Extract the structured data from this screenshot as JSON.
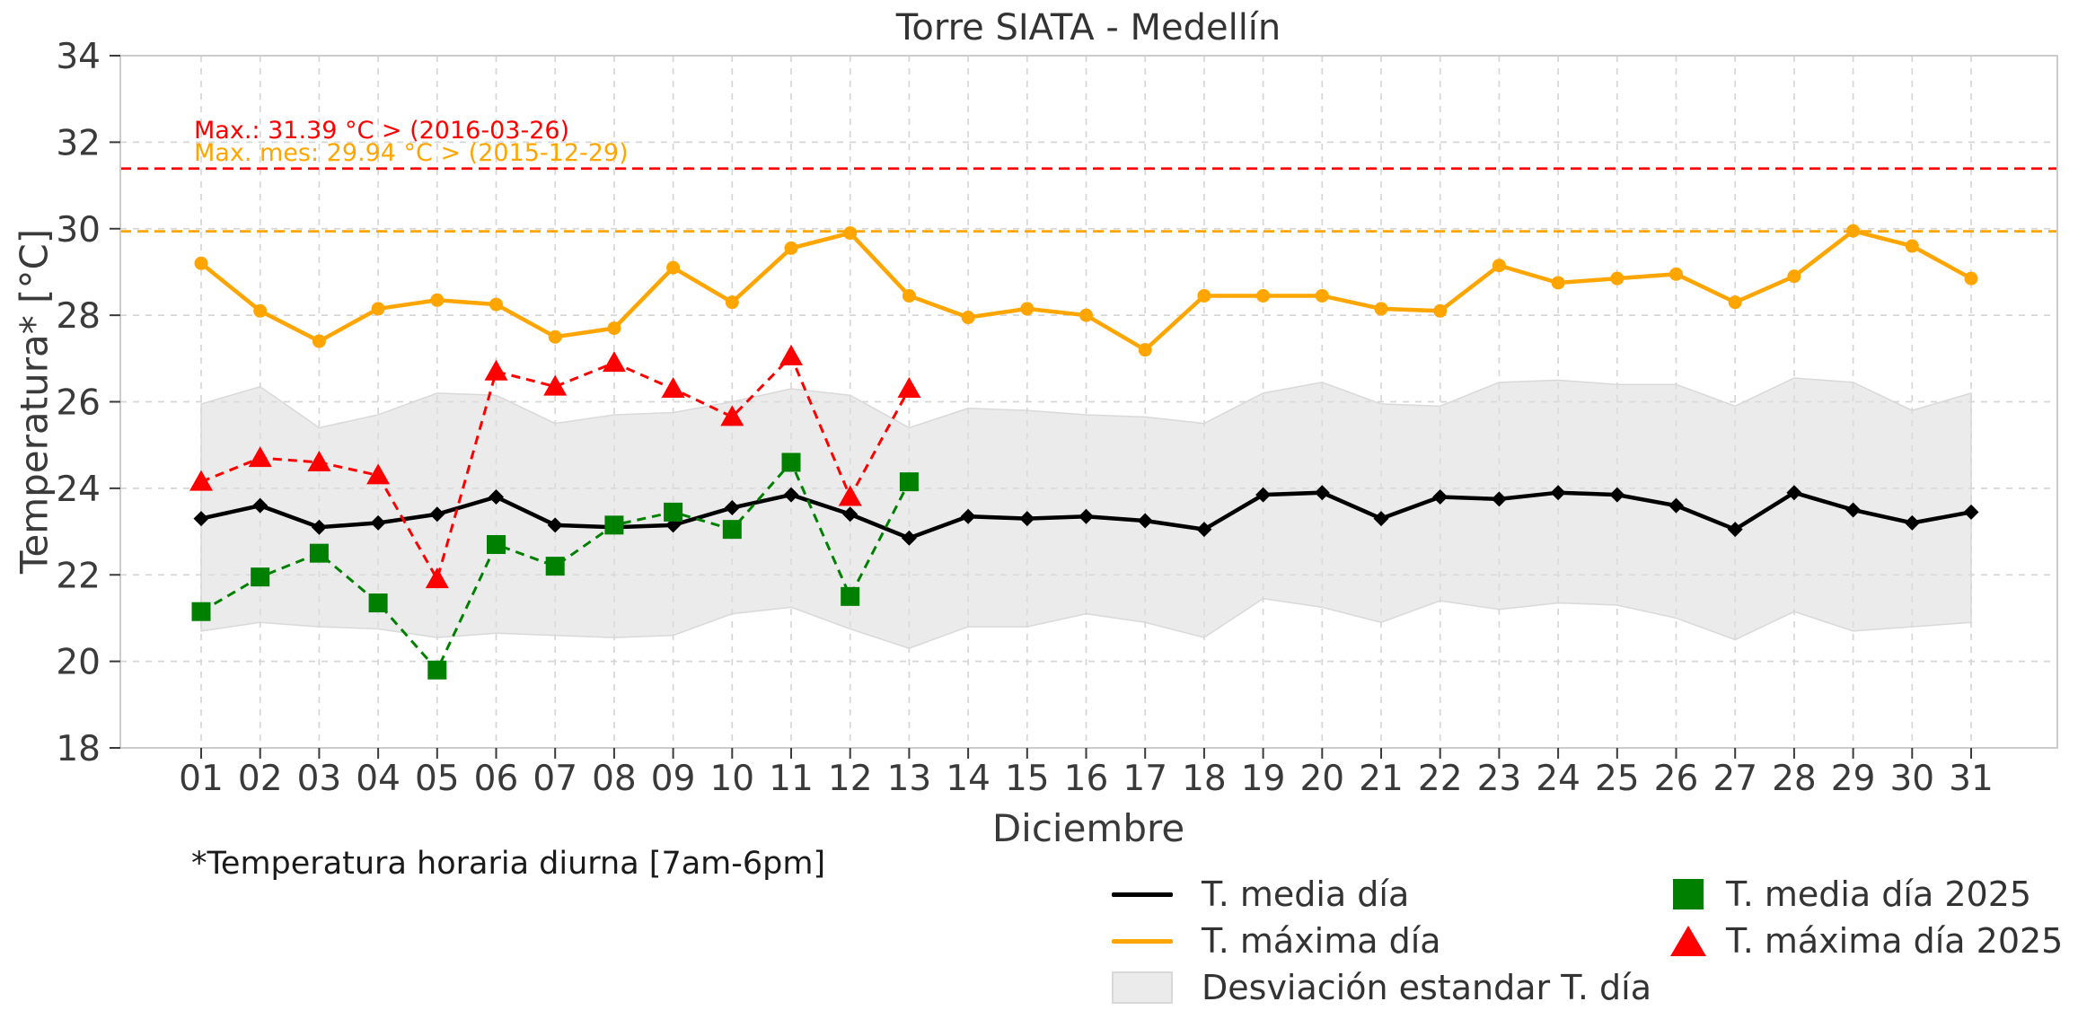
{
  "title": "Torre SIATA - Medellín",
  "axes": {
    "y_label": "Temperatura* [°C]",
    "x_label": "Diciembre",
    "y_ticks": [
      18,
      20,
      22,
      24,
      26,
      28,
      30,
      32,
      34
    ],
    "x_ticks": [
      "01",
      "02",
      "03",
      "04",
      "05",
      "06",
      "07",
      "08",
      "09",
      "10",
      "11",
      "12",
      "13",
      "14",
      "15",
      "16",
      "17",
      "18",
      "19",
      "20",
      "21",
      "22",
      "23",
      "24",
      "25",
      "26",
      "27",
      "28",
      "29",
      "30",
      "31"
    ]
  },
  "footnote": "*Temperatura horaria diurna [7am-6pm]",
  "legend": {
    "column1": [
      {
        "label": "T. media día",
        "swatch": "black-line"
      },
      {
        "label": "T. máxima día",
        "swatch": "orange-line"
      },
      {
        "label": "Desviación estandar T. día",
        "swatch": "gray-patch"
      }
    ],
    "column2": [
      {
        "label": "T. media día 2025",
        "swatch": "green-square"
      },
      {
        "label": "T. máxima día 2025",
        "swatch": "red-triangle"
      }
    ]
  },
  "colors": {
    "mean_line": "#000000",
    "max_line": "#ffa500",
    "band_fill": "#ebebeb",
    "mean_2025": "#008000",
    "max_2025": "#ff0000",
    "grid": "#d6d6d6",
    "spine": "#cccccc",
    "tick_text": "#3a3a3a"
  },
  "chart_data": {
    "type": "line",
    "title": "Torre SIATA - Medellín",
    "xlabel": "Diciembre",
    "ylabel": "Temperatura* [°C]",
    "ylim": [
      18,
      34
    ],
    "grid": true,
    "legend_position": "below",
    "x": [
      1,
      2,
      3,
      4,
      5,
      6,
      7,
      8,
      9,
      10,
      11,
      12,
      13,
      14,
      15,
      16,
      17,
      18,
      19,
      20,
      21,
      22,
      23,
      24,
      25,
      26,
      27,
      28,
      29,
      30,
      31
    ],
    "x_tick_labels": [
      "01",
      "02",
      "03",
      "04",
      "05",
      "06",
      "07",
      "08",
      "09",
      "10",
      "11",
      "12",
      "13",
      "14",
      "15",
      "16",
      "17",
      "18",
      "19",
      "20",
      "21",
      "22",
      "23",
      "24",
      "25",
      "26",
      "27",
      "28",
      "29",
      "30",
      "31"
    ],
    "series": [
      {
        "name": "Desviación estandar T. día",
        "type": "band",
        "color": "#e0e0e0",
        "upper": [
          25.95,
          26.35,
          25.4,
          25.7,
          26.2,
          26.15,
          25.5,
          25.7,
          25.75,
          26.0,
          26.3,
          26.15,
          25.4,
          25.85,
          25.8,
          25.7,
          25.65,
          25.5,
          26.2,
          26.45,
          25.95,
          25.9,
          26.45,
          26.5,
          26.4,
          26.4,
          25.9,
          26.55,
          26.45,
          25.8,
          26.2
        ],
        "lower": [
          20.7,
          20.9,
          20.8,
          20.75,
          20.55,
          20.65,
          20.6,
          20.55,
          20.6,
          21.1,
          21.25,
          20.75,
          20.3,
          20.8,
          20.8,
          21.1,
          20.9,
          20.55,
          21.45,
          21.25,
          20.9,
          21.4,
          21.2,
          21.35,
          21.3,
          21.0,
          20.5,
          21.15,
          20.7,
          20.8,
          20.9
        ]
      },
      {
        "name": "T. máxima día",
        "type": "line",
        "linestyle": "solid",
        "marker": "circle",
        "color": "#ffa500",
        "values": [
          29.2,
          28.1,
          27.4,
          28.15,
          28.35,
          28.25,
          27.5,
          27.7,
          29.1,
          28.3,
          29.55,
          29.9,
          28.45,
          27.95,
          28.15,
          28.0,
          27.2,
          28.45,
          28.45,
          28.45,
          28.15,
          28.1,
          29.15,
          28.75,
          28.85,
          28.95,
          28.3,
          28.9,
          29.95,
          29.6,
          28.85
        ]
      },
      {
        "name": "T. media día",
        "type": "line",
        "linestyle": "solid",
        "marker": "diamond",
        "color": "#000000",
        "values": [
          23.3,
          23.6,
          23.1,
          23.2,
          23.4,
          23.8,
          23.15,
          23.1,
          23.15,
          23.55,
          23.85,
          23.4,
          22.85,
          23.35,
          23.3,
          23.35,
          23.25,
          23.05,
          23.85,
          23.9,
          23.3,
          23.8,
          23.75,
          23.9,
          23.85,
          23.6,
          23.05,
          23.9,
          23.5,
          23.2,
          23.45
        ]
      },
      {
        "name": "T. media día 2025",
        "type": "line",
        "linestyle": "dashed",
        "marker": "square",
        "color": "#008000",
        "values": [
          21.15,
          21.95,
          22.5,
          21.35,
          19.8,
          22.7,
          22.2,
          23.15,
          23.45,
          23.05,
          24.6,
          21.5,
          24.15
        ]
      },
      {
        "name": "T. máxima día 2025",
        "type": "line",
        "linestyle": "dashed",
        "marker": "triangle",
        "color": "#ff0000",
        "values": [
          24.15,
          24.7,
          24.6,
          24.3,
          21.9,
          26.7,
          26.35,
          26.9,
          26.3,
          25.65,
          27.05,
          23.8,
          26.3
        ]
      }
    ],
    "reference_lines": [
      {
        "label": "Max.: 31.39 °C  >  (2016-03-26)",
        "value": 31.39,
        "color": "#ff0000",
        "style": "dashed"
      },
      {
        "label": "Max. mes: 29.94 °C  >  (2015-12-29)",
        "value": 29.94,
        "color": "#ffa500",
        "style": "dashed"
      }
    ]
  }
}
